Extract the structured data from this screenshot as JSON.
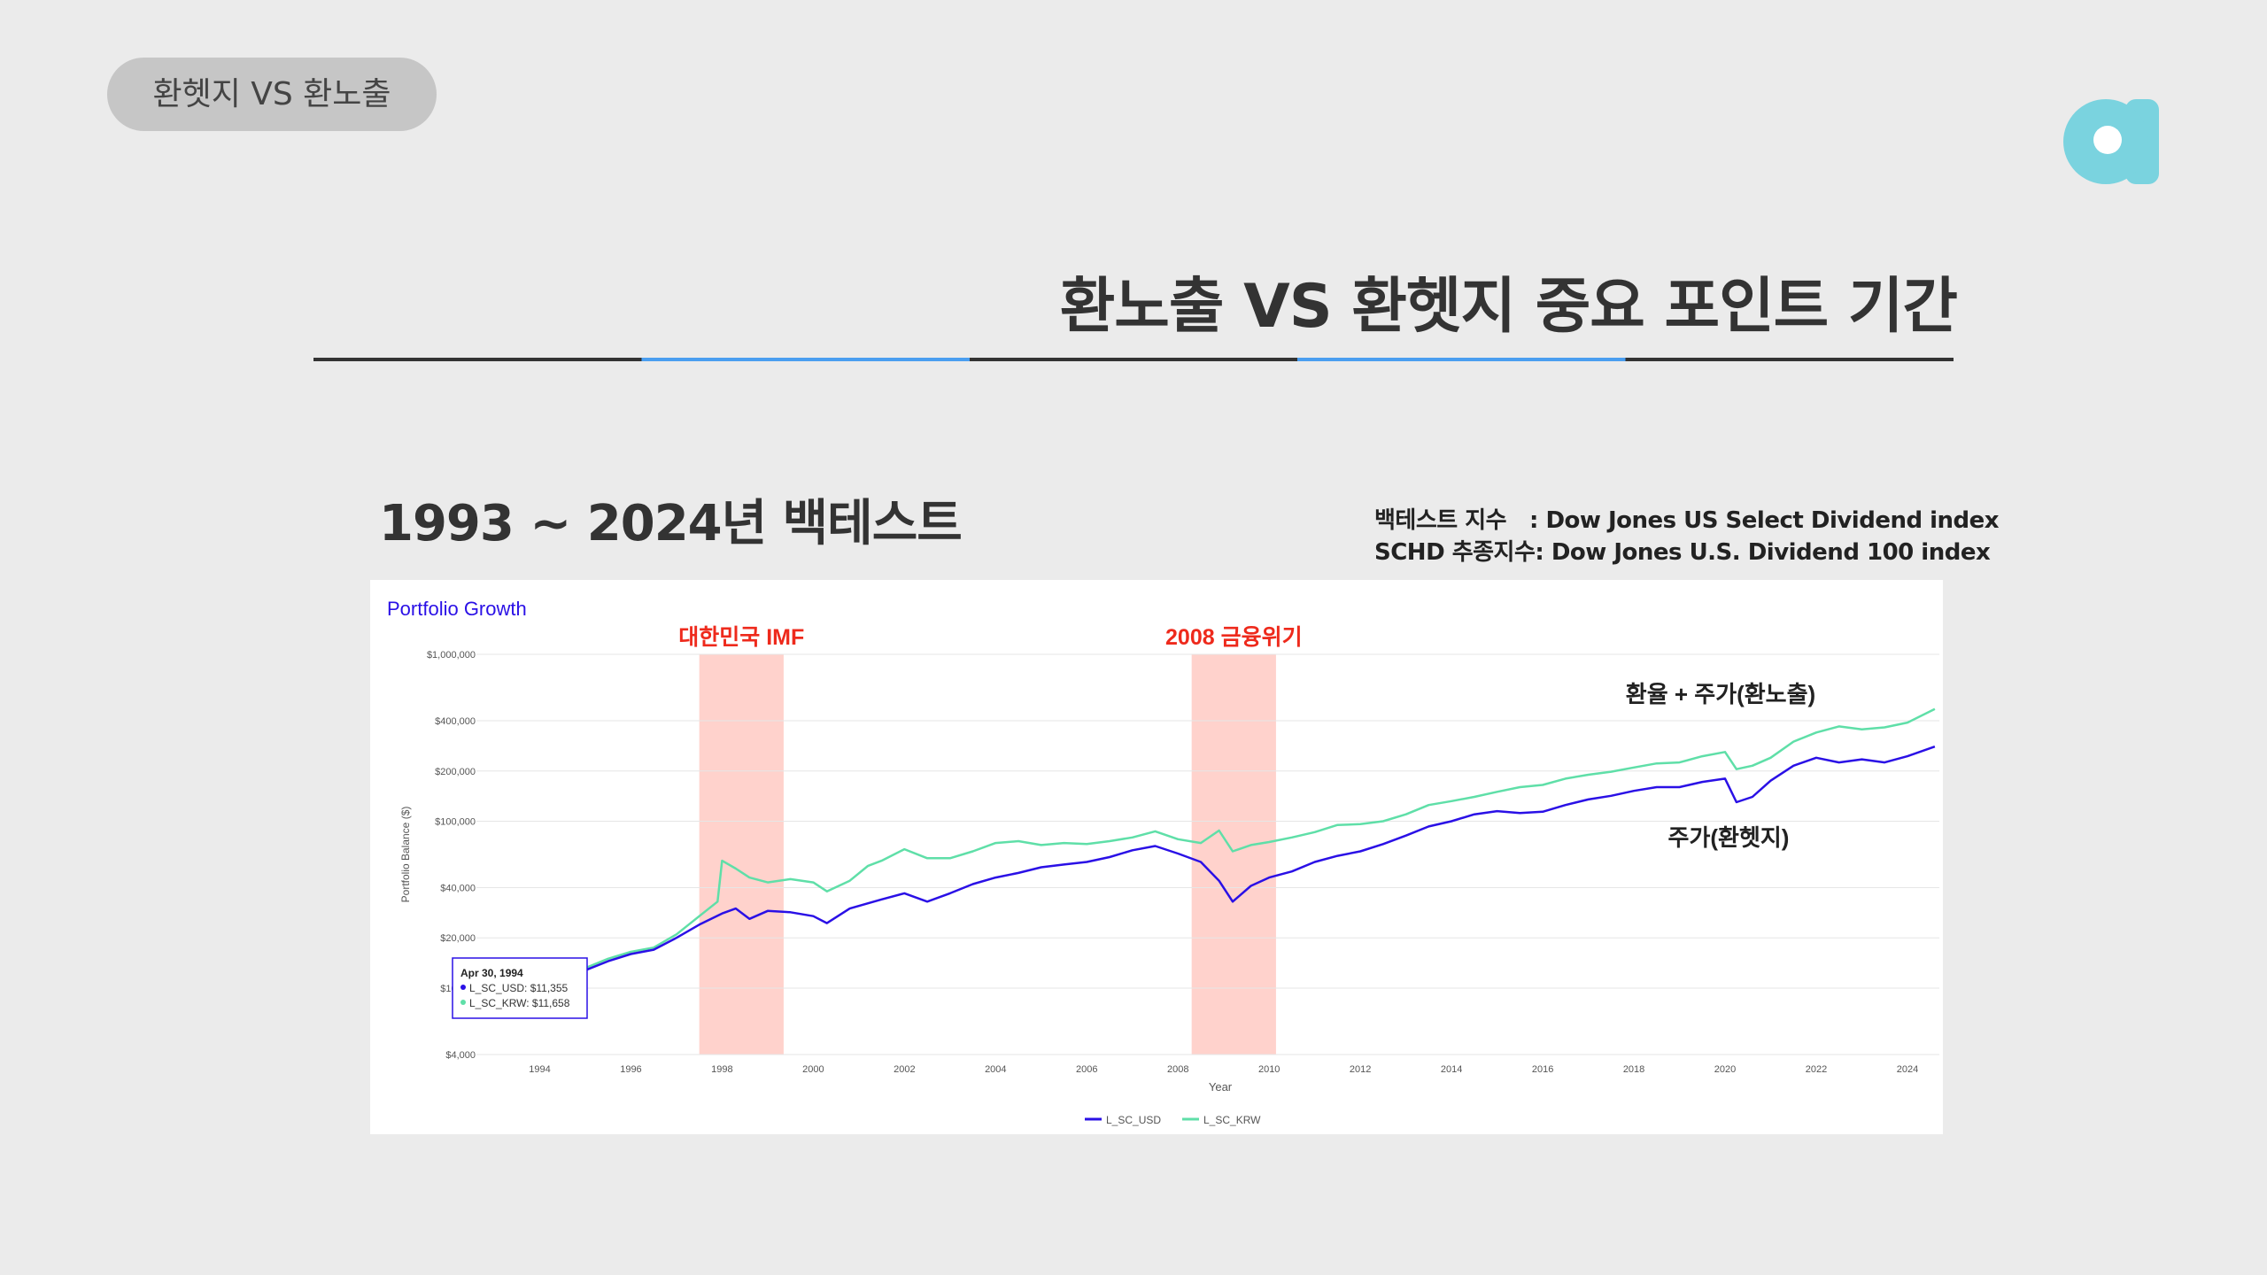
{
  "header": {
    "pill_label": "환헷지 VS 환노출"
  },
  "page": {
    "title": "환노출 VS 환헷지 중요 포인트 기간",
    "subtitle": "1993 ~ 2024년 백테스트"
  },
  "info": {
    "line1_key": "백테스트 지수",
    "line1_value": ": Dow Jones US Select Dividend index",
    "line2_key": "SCHD 추종지수",
    "line2_value": ": Dow Jones U.S. Dividend 100 index"
  },
  "colors": {
    "usd": "#2a10e6",
    "krw": "#5fdfa8",
    "highlight": "#ffd2cc",
    "annotation_red": "#ee2a1c",
    "title_blue": "#2a10e6",
    "accent": "#4a9ef0"
  },
  "tooltip": {
    "date": "Apr 30, 1994",
    "usd": "L_SC_USD: $11,355",
    "krw": "L_SC_KRW: $11,658"
  },
  "chart_data": {
    "type": "line",
    "title": "Portfolio Growth",
    "xlabel": "Year",
    "ylabel": "Portfolio Balance ($)",
    "y_scale": "log",
    "ylim": [
      4000,
      1000000
    ],
    "xlim": [
      1993.0,
      2024.7
    ],
    "y_ticks": [
      4000,
      10000,
      20000,
      40000,
      100000,
      200000,
      400000,
      1000000
    ],
    "y_tick_labels": [
      "$4,000",
      "$10,000",
      "$20,000",
      "$40,000",
      "$100,000",
      "$200,000",
      "$400,000",
      "$1,000,000"
    ],
    "x_ticks": [
      1994,
      1996,
      1998,
      2000,
      2002,
      2004,
      2006,
      2008,
      2010,
      2012,
      2014,
      2016,
      2018,
      2020,
      2022,
      2024
    ],
    "x_tick_labels": [
      "1994",
      "1996",
      "1998",
      "2000",
      "2002",
      "2004",
      "2006",
      "2008",
      "2010",
      "2012",
      "2014",
      "2016",
      "2018",
      "2020",
      "2022",
      "2024"
    ],
    "legend_position": "bottom",
    "grid": true,
    "series": [
      {
        "name": "L_SC_USD",
        "points": [
          [
            1993.9,
            10000
          ],
          [
            1994.33,
            11355
          ],
          [
            1995.0,
            12800
          ],
          [
            1995.5,
            14500
          ],
          [
            1996.0,
            16000
          ],
          [
            1996.5,
            17000
          ],
          [
            1997.0,
            20000
          ],
          [
            1997.5,
            24000
          ],
          [
            1998.0,
            28000
          ],
          [
            1998.3,
            30000
          ],
          [
            1998.6,
            26000
          ],
          [
            1999.0,
            29000
          ],
          [
            1999.5,
            28500
          ],
          [
            2000.0,
            27000
          ],
          [
            2000.3,
            24500
          ],
          [
            2000.8,
            30000
          ],
          [
            2001.5,
            34000
          ],
          [
            2002.0,
            37000
          ],
          [
            2002.5,
            33000
          ],
          [
            2003.0,
            37000
          ],
          [
            2003.5,
            42000
          ],
          [
            2004.0,
            46000
          ],
          [
            2004.5,
            49000
          ],
          [
            2005.0,
            53000
          ],
          [
            2005.5,
            55000
          ],
          [
            2006.0,
            57000
          ],
          [
            2006.5,
            61000
          ],
          [
            2007.0,
            67000
          ],
          [
            2007.5,
            71000
          ],
          [
            2008.0,
            64000
          ],
          [
            2008.5,
            57000
          ],
          [
            2008.9,
            44000
          ],
          [
            2009.2,
            33000
          ],
          [
            2009.6,
            41000
          ],
          [
            2010.0,
            46000
          ],
          [
            2010.5,
            50000
          ],
          [
            2011.0,
            57000
          ],
          [
            2011.5,
            62000
          ],
          [
            2012.0,
            66000
          ],
          [
            2012.5,
            73000
          ],
          [
            2013.0,
            82000
          ],
          [
            2013.5,
            93000
          ],
          [
            2014.0,
            100000
          ],
          [
            2014.5,
            110000
          ],
          [
            2015.0,
            115000
          ],
          [
            2015.5,
            112000
          ],
          [
            2016.0,
            114000
          ],
          [
            2016.5,
            125000
          ],
          [
            2017.0,
            135000
          ],
          [
            2017.5,
            142000
          ],
          [
            2018.0,
            152000
          ],
          [
            2018.5,
            160000
          ],
          [
            2019.0,
            160000
          ],
          [
            2019.5,
            172000
          ],
          [
            2020.0,
            180000
          ],
          [
            2020.25,
            130000
          ],
          [
            2020.6,
            140000
          ],
          [
            2021.0,
            175000
          ],
          [
            2021.5,
            215000
          ],
          [
            2022.0,
            240000
          ],
          [
            2022.5,
            225000
          ],
          [
            2023.0,
            235000
          ],
          [
            2023.5,
            225000
          ],
          [
            2024.0,
            245000
          ],
          [
            2024.6,
            280000
          ]
        ]
      },
      {
        "name": "L_SC_KRW",
        "points": [
          [
            1993.9,
            10000
          ],
          [
            1994.33,
            11658
          ],
          [
            1995.0,
            13200
          ],
          [
            1995.5,
            15000
          ],
          [
            1996.0,
            16500
          ],
          [
            1996.5,
            17500
          ],
          [
            1997.0,
            21000
          ],
          [
            1997.5,
            27000
          ],
          [
            1997.9,
            33000
          ],
          [
            1998.0,
            58000
          ],
          [
            1998.3,
            52000
          ],
          [
            1998.6,
            46000
          ],
          [
            1999.0,
            43000
          ],
          [
            1999.5,
            45000
          ],
          [
            2000.0,
            43000
          ],
          [
            2000.3,
            38000
          ],
          [
            2000.8,
            44000
          ],
          [
            2001.2,
            54000
          ],
          [
            2001.5,
            58000
          ],
          [
            2002.0,
            68000
          ],
          [
            2002.5,
            60000
          ],
          [
            2003.0,
            60000
          ],
          [
            2003.5,
            66000
          ],
          [
            2004.0,
            74000
          ],
          [
            2004.5,
            76000
          ],
          [
            2005.0,
            72000
          ],
          [
            2005.5,
            74000
          ],
          [
            2006.0,
            73000
          ],
          [
            2006.5,
            76000
          ],
          [
            2007.0,
            80000
          ],
          [
            2007.5,
            87000
          ],
          [
            2008.0,
            78000
          ],
          [
            2008.5,
            74000
          ],
          [
            2008.9,
            88000
          ],
          [
            2009.2,
            66000
          ],
          [
            2009.6,
            72000
          ],
          [
            2010.0,
            75000
          ],
          [
            2010.5,
            80000
          ],
          [
            2011.0,
            86000
          ],
          [
            2011.5,
            95000
          ],
          [
            2012.0,
            96000
          ],
          [
            2012.5,
            100000
          ],
          [
            2013.0,
            110000
          ],
          [
            2013.5,
            125000
          ],
          [
            2014.0,
            132000
          ],
          [
            2014.5,
            140000
          ],
          [
            2015.0,
            150000
          ],
          [
            2015.5,
            160000
          ],
          [
            2016.0,
            165000
          ],
          [
            2016.5,
            180000
          ],
          [
            2017.0,
            190000
          ],
          [
            2017.5,
            198000
          ],
          [
            2018.0,
            210000
          ],
          [
            2018.5,
            222000
          ],
          [
            2019.0,
            225000
          ],
          [
            2019.5,
            245000
          ],
          [
            2020.0,
            260000
          ],
          [
            2020.25,
            205000
          ],
          [
            2020.6,
            215000
          ],
          [
            2021.0,
            240000
          ],
          [
            2021.5,
            300000
          ],
          [
            2022.0,
            340000
          ],
          [
            2022.5,
            370000
          ],
          [
            2023.0,
            355000
          ],
          [
            2023.5,
            365000
          ],
          [
            2024.0,
            390000
          ],
          [
            2024.6,
            470000
          ]
        ]
      }
    ],
    "highlights": [
      {
        "label": "대한민국 IMF",
        "from": 1997.5,
        "to": 1999.35
      },
      {
        "label": "2008 금융위기",
        "from": 2008.3,
        "to": 2010.15
      }
    ],
    "annotations": [
      {
        "text": "환율 + 주가(환노출)",
        "series": "L_SC_KRW"
      },
      {
        "text": "주가(환헷지)",
        "series": "L_SC_USD"
      }
    ]
  }
}
